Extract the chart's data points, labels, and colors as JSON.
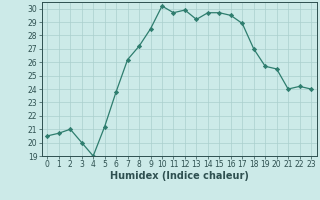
{
  "x": [
    0,
    1,
    2,
    3,
    4,
    5,
    6,
    7,
    8,
    9,
    10,
    11,
    12,
    13,
    14,
    15,
    16,
    17,
    18,
    19,
    20,
    21,
    22,
    23
  ],
  "y": [
    20.5,
    20.7,
    21.0,
    20.0,
    19.0,
    21.2,
    23.8,
    26.2,
    27.2,
    28.5,
    30.2,
    29.7,
    29.9,
    29.2,
    29.7,
    29.7,
    29.5,
    28.9,
    27.0,
    25.7,
    25.5,
    24.0,
    24.2,
    24.0
  ],
  "xlabel": "Humidex (Indice chaleur)",
  "xlim": [
    -0.5,
    23.5
  ],
  "ylim": [
    19,
    30.5
  ],
  "yticks": [
    19,
    20,
    21,
    22,
    23,
    24,
    25,
    26,
    27,
    28,
    29,
    30
  ],
  "xticks": [
    0,
    1,
    2,
    3,
    4,
    5,
    6,
    7,
    8,
    9,
    10,
    11,
    12,
    13,
    14,
    15,
    16,
    17,
    18,
    19,
    20,
    21,
    22,
    23
  ],
  "line_color": "#2e7d6e",
  "marker_color": "#2e7d6e",
  "bg_color": "#cceae8",
  "grid_color_major": "#aacfcd",
  "grid_color_minor": "#aacfcd",
  "tick_fontsize": 5.5,
  "label_fontsize": 7,
  "tick_color": "#2e5050",
  "spine_color": "#2e5050"
}
